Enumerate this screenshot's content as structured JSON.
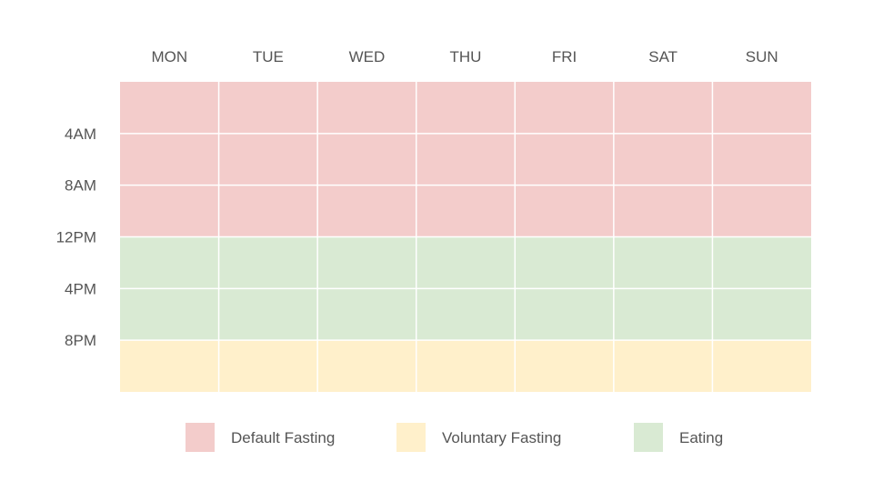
{
  "chart_data": {
    "type": "heatmap",
    "days": [
      "MON",
      "TUE",
      "WED",
      "THU",
      "FRI",
      "SAT",
      "SUN"
    ],
    "time_ticks": [
      "4AM",
      "8AM",
      "12PM",
      "4PM",
      "8PM"
    ],
    "hour_range": [
      0,
      24
    ],
    "blocks": [
      {
        "category": "Default Fasting",
        "start_hour": 0,
        "end_hour": 12
      },
      {
        "category": "Eating",
        "start_hour": 12,
        "end_hour": 20
      },
      {
        "category": "Voluntary Fasting",
        "start_hour": 20,
        "end_hour": 24
      }
    ],
    "legend": [
      {
        "label": "Default Fasting",
        "color": "#f3cccb"
      },
      {
        "label": "Voluntary Fasting",
        "color": "#fff0cb"
      },
      {
        "label": "Eating",
        "color": "#d9ead3"
      }
    ],
    "legend_position": "bottom",
    "grid": true
  }
}
